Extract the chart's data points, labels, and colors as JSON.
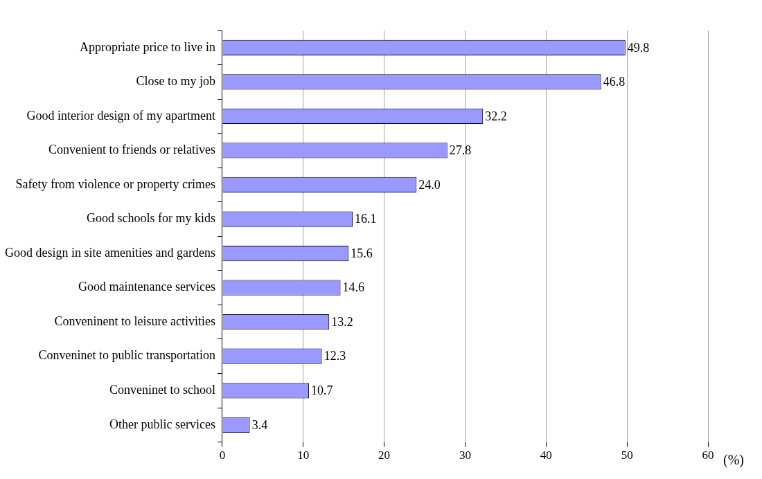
{
  "chart_data": {
    "type": "bar",
    "orientation": "horizontal",
    "xlabel": "(%)",
    "categories": [
      "Appropriate price to live in",
      "Close to my job",
      "Good interior design of my apartment",
      "Convenient to friends or relatives",
      "Safety from violence or property crimes",
      "Good schools for my kids",
      "Good design in site amenities and gardens",
      "Good maintenance services",
      "Conveninent to leisure activities",
      "Conveninet to public transportation",
      "Conveninet to school",
      "Other public services"
    ],
    "values": [
      49.8,
      46.8,
      32.2,
      27.8,
      24.0,
      16.1,
      15.6,
      14.6,
      13.2,
      12.3,
      10.7,
      3.4
    ],
    "value_labels": [
      "49.8",
      "46.8",
      "32.2",
      "27.8",
      "24.0",
      "16.1",
      "15.6",
      "14.6",
      "13.2",
      "12.3",
      "10.7",
      "3.4"
    ],
    "color": "#9999ff",
    "xlim": [
      0,
      60
    ],
    "xticks": [
      0,
      10,
      20,
      30,
      40,
      50,
      60
    ],
    "grid": "x",
    "legend": false
  }
}
